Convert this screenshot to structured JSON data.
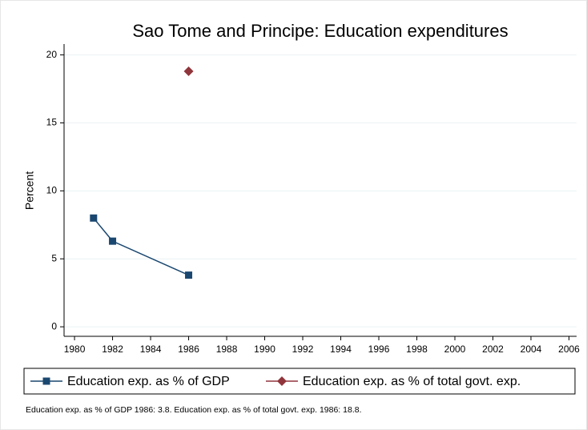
{
  "chart_data": {
    "type": "line",
    "title": "Sao Tome and Principe: Education expenditures",
    "y_label": "Percent",
    "x": [
      1981,
      1982,
      1986
    ],
    "series": [
      {
        "name": "Education exp. as % of GDP",
        "color": "#1a476f",
        "marker": "square",
        "values": [
          8,
          6.3,
          3.8
        ]
      },
      {
        "name": "Education exp. as % of total govt. exp.",
        "color": "#90353b",
        "marker": "diamond",
        "values": [
          null,
          null,
          18.8
        ]
      }
    ],
    "xlim": [
      1979.45,
      2006.4
    ],
    "xticks": [
      1980,
      1982,
      1984,
      1986,
      1988,
      1990,
      1992,
      1994,
      1996,
      1998,
      2000,
      2002,
      2004,
      2006
    ],
    "ylim": [
      -0.7,
      20.8
    ],
    "yticks": [
      0,
      5,
      10,
      15,
      20
    ],
    "grid": true,
    "legend_position": "bottom",
    "note": "Education exp. as % of GDP 1986: 3.8. Education exp. as % of total govt. exp. 1986: 18.8."
  }
}
